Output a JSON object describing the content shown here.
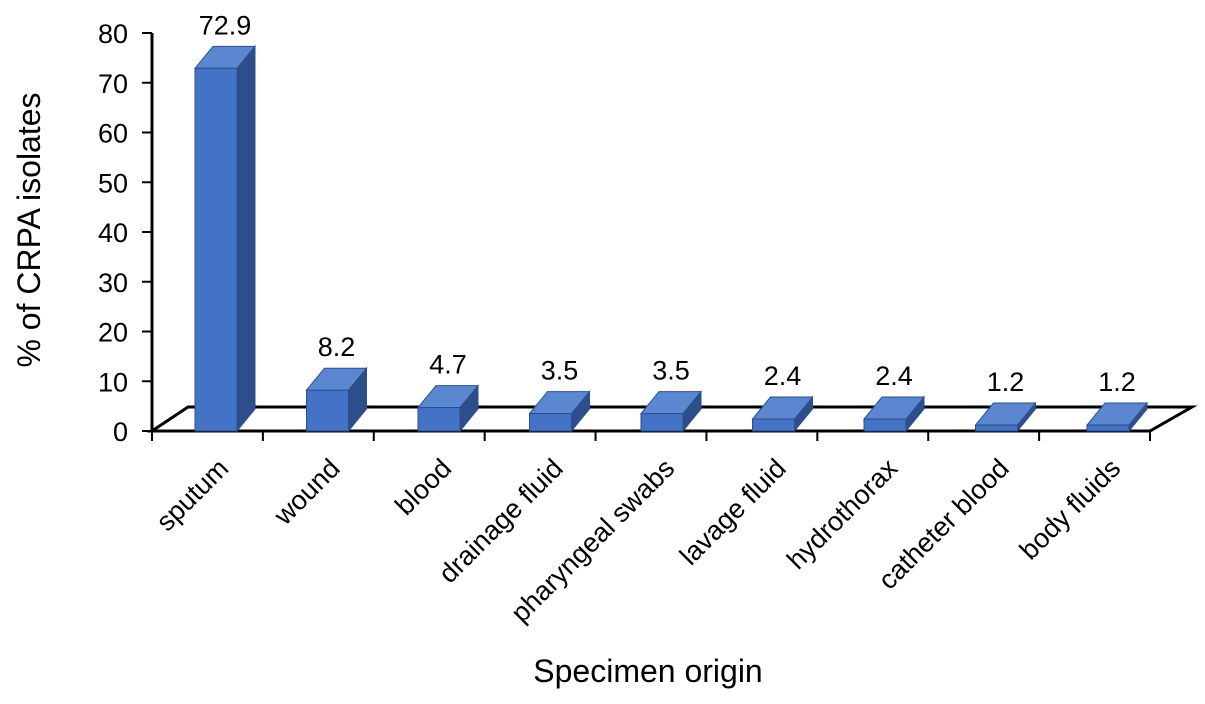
{
  "chart_data": {
    "type": "bar",
    "style": "3d-column",
    "categories": [
      "sputum",
      "wound",
      "blood",
      "drainage fluid",
      "pharyngeal swabs",
      "lavage fluid",
      "hydrothorax",
      "catheter blood",
      "body fluids"
    ],
    "values": [
      72.9,
      8.2,
      4.7,
      3.5,
      3.5,
      2.4,
      2.4,
      1.2,
      1.2
    ],
    "value_labels": [
      "72.9",
      "8.2",
      "4.7",
      "3.5",
      "3.5",
      "2.4",
      "2.4",
      "1.2",
      "1.2"
    ],
    "title": "",
    "xlabel": "Specimen origin",
    "ylabel": "% of CRPA isolates",
    "ylim": [
      0,
      80
    ],
    "yticks": [
      "0",
      "10",
      "20",
      "30",
      "40",
      "50",
      "60",
      "70",
      "80"
    ],
    "grid": false,
    "legend": "none",
    "colors": {
      "bar_front": "#4472c4",
      "bar_side": "#2c4f8c",
      "bar_top": "#5b86d0",
      "axis": "#000000"
    }
  }
}
